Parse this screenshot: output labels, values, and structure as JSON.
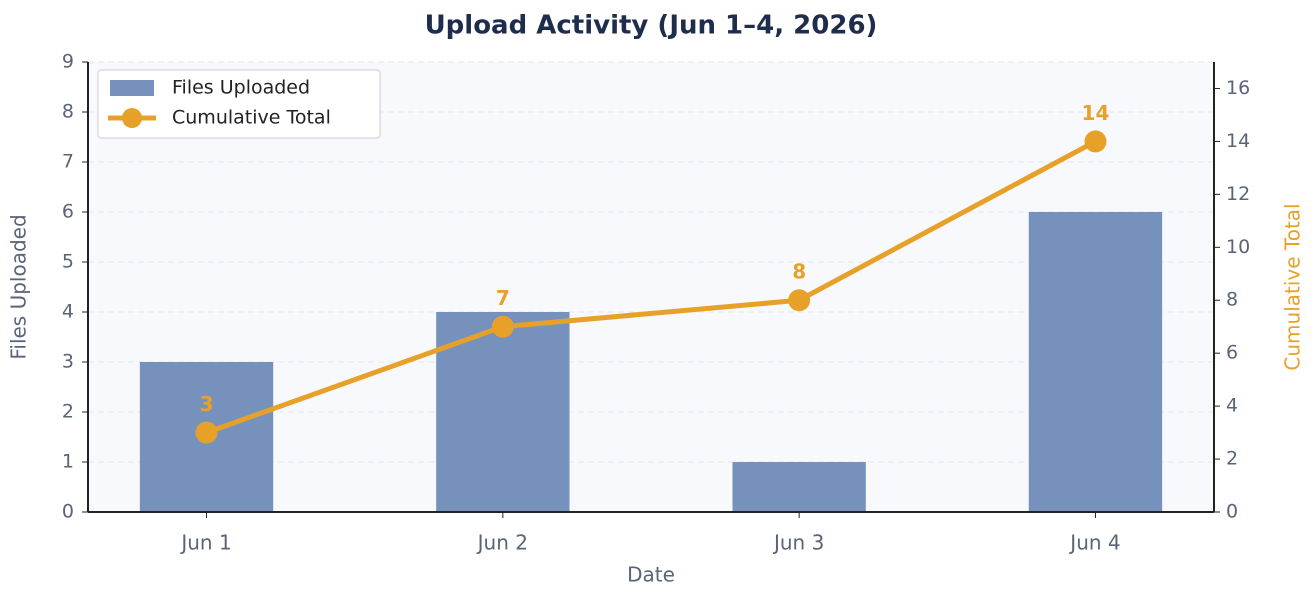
{
  "chart_data": {
    "type": "bar-line",
    "title": "Upload Activity (Jun 1–4, 2026)",
    "categories": [
      "Jun 1",
      "Jun 2",
      "Jun 3",
      "Jun 4"
    ],
    "series": [
      {
        "name": "Files Uploaded",
        "color": "#7692bc",
        "type": "bar",
        "values": [
          3,
          4,
          1,
          6
        ]
      },
      {
        "name": "Cumulative Total",
        "color": "#e8a128",
        "type": "line",
        "axis": "y2",
        "values": [
          3,
          7,
          8,
          14
        ]
      }
    ],
    "xlabel": "Date",
    "ylabel": "Files Uploaded",
    "y2label": "Cumulative Total",
    "ylim": [
      0,
      9
    ],
    "yticks": [
      0,
      1,
      2,
      3,
      4,
      5,
      6,
      7,
      8,
      9
    ],
    "y2lim": [
      0,
      17
    ],
    "y2ticks": [
      0,
      2,
      4,
      6,
      8,
      10,
      12,
      14,
      16
    ],
    "grid": true,
    "legend": "upper left"
  }
}
